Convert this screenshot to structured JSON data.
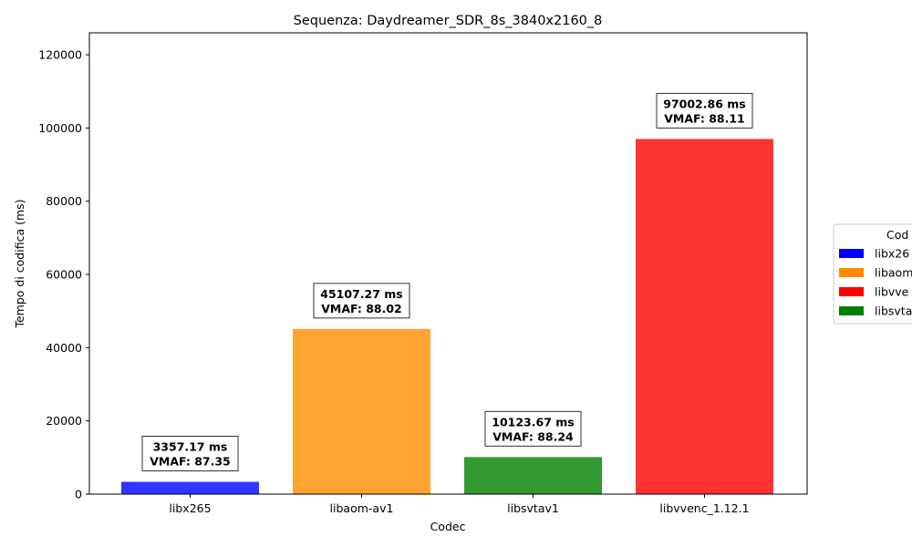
{
  "chart_data": {
    "type": "bar",
    "title": "Sequenza: Daydreamer_SDR_8s_3840x2160_8",
    "xlabel": "Codec",
    "ylabel": "Tempo di codifica (ms)",
    "ylim": [
      0,
      126000
    ],
    "yticks": [
      0,
      20000,
      40000,
      60000,
      80000,
      100000,
      120000
    ],
    "categories": [
      "libx265",
      "libaom-av1",
      "libsvtav1",
      "libvvenc_1.12.1"
    ],
    "values": [
      3357.17,
      45107.27,
      10123.67,
      97002.86
    ],
    "bar_colors": [
      "#3333ff",
      "#ffa333",
      "#339933",
      "#ff3333"
    ],
    "annotations": [
      {
        "line1": "3357.17 ms",
        "line2": "VMAF: 87.35"
      },
      {
        "line1": "45107.27 ms",
        "line2": "VMAF: 88.02"
      },
      {
        "line1": "10123.67 ms",
        "line2": "VMAF: 88.24"
      },
      {
        "line1": "97002.86 ms",
        "line2": "VMAF: 88.11"
      }
    ],
    "legend": {
      "title": "Cod",
      "placement": "right",
      "entries": [
        {
          "label": "libx26",
          "color": "#0000ff"
        },
        {
          "label": "libaom",
          "color": "#ff8c00"
        },
        {
          "label": "libvve",
          "color": "#ff0000"
        },
        {
          "label": "libsvta",
          "color": "#008000"
        }
      ]
    },
    "grid": false
  }
}
